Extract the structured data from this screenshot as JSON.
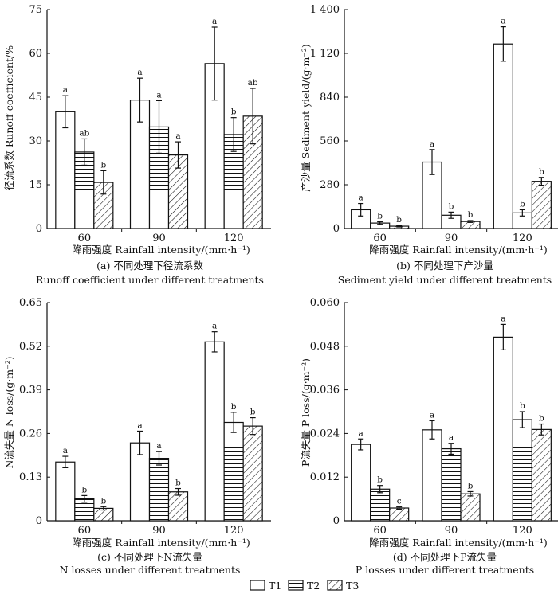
{
  "figure": {
    "legend": [
      "T1",
      "T2",
      "T3"
    ],
    "series_patterns": {
      "T1": "blank",
      "T2": "horizontal-lines",
      "T3": "diagonal-lines"
    },
    "colors": {
      "line": "#111111",
      "fill": "#ffffff"
    }
  },
  "chart_data": [
    {
      "type": "bar",
      "id": "a",
      "categories": [
        "60",
        "90",
        "120"
      ],
      "series": [
        {
          "name": "T1",
          "values": [
            40,
            44,
            56.5
          ],
          "errors": [
            5.5,
            7.5,
            12.5
          ],
          "letters": [
            "a",
            "a",
            "a"
          ]
        },
        {
          "name": "T2",
          "values": [
            26.2,
            34.8,
            32.2
          ],
          "errors": [
            4.5,
            9,
            5.8
          ],
          "letters": [
            "ab",
            "a",
            "b"
          ]
        },
        {
          "name": "T3",
          "values": [
            15.8,
            25.2,
            38.5
          ],
          "errors": [
            4,
            4.5,
            9.5
          ],
          "letters": [
            "b",
            "a",
            "ab"
          ]
        }
      ],
      "ylim": [
        0,
        75
      ],
      "yticks": [
        "0",
        "15",
        "30",
        "45",
        "60",
        "75"
      ],
      "ylabel": "径流系数 Runoff coefficient/%",
      "xlabel": "降雨强度 Rainfall intensity/(mm·h⁻¹)",
      "caption_cn": "(a) 不同处理下径流系数",
      "caption_en": "Runoff coefficient under different treatments"
    },
    {
      "type": "bar",
      "id": "b",
      "categories": [
        "60",
        "90",
        "120"
      ],
      "series": [
        {
          "name": "T1",
          "values": [
            120,
            425,
            1180
          ],
          "errors": [
            40,
            80,
            110
          ],
          "letters": [
            "a",
            "a",
            "a"
          ]
        },
        {
          "name": "T2",
          "values": [
            35,
            85,
            100
          ],
          "errors": [
            8,
            20,
            20
          ],
          "letters": [
            "b",
            "b",
            "b"
          ]
        },
        {
          "name": "T3",
          "values": [
            15,
            45,
            302
          ],
          "errors": [
            5,
            6,
            25
          ],
          "letters": [
            "b",
            "b",
            "b"
          ]
        }
      ],
      "ylim": [
        0,
        1400
      ],
      "yticks": [
        "0",
        "280",
        "560",
        "840",
        "1 120",
        "1 400"
      ],
      "ylabel": "产沙量 Sediment yield/(g·m⁻²)",
      "xlabel": "降雨强度 Rainfall intensity/(mm·h⁻¹)",
      "caption_cn": "(b) 不同处理下产沙量",
      "caption_en": "Sediment yield under different treatments"
    },
    {
      "type": "bar",
      "id": "c",
      "categories": [
        "60",
        "90",
        "120"
      ],
      "series": [
        {
          "name": "T1",
          "values": [
            0.175,
            0.232,
            0.533
          ],
          "errors": [
            0.017,
            0.035,
            0.03
          ],
          "letters": [
            "a",
            "a",
            "a"
          ]
        },
        {
          "name": "T2",
          "values": [
            0.065,
            0.186,
            0.293
          ],
          "errors": [
            0.01,
            0.02,
            0.03
          ],
          "letters": [
            "b",
            "a",
            "b"
          ]
        },
        {
          "name": "T3",
          "values": [
            0.037,
            0.086,
            0.282
          ],
          "errors": [
            0.005,
            0.01,
            0.025
          ],
          "letters": [
            "b",
            "b",
            "b"
          ]
        }
      ],
      "ylim": [
        0,
        0.65
      ],
      "yticks": [
        "0",
        "0.13",
        "0.26",
        "0.39",
        "0.52",
        "0.65"
      ],
      "ylabel": "N流失量 N loss/(g·m⁻²)",
      "xlabel": "降雨强度 Rainfall intensity/(mm·h⁻¹)",
      "caption_cn": "(c) 不同处理下N流失量",
      "caption_en": "N losses under different treatments"
    },
    {
      "type": "bar",
      "id": "d",
      "categories": [
        "60",
        "90",
        "120"
      ],
      "series": [
        {
          "name": "T1",
          "values": [
            0.021,
            0.025,
            0.0505
          ],
          "errors": [
            0.0015,
            0.0025,
            0.0035
          ],
          "letters": [
            "a",
            "a",
            "a"
          ]
        },
        {
          "name": "T2",
          "values": [
            0.0087,
            0.0198,
            0.0278
          ],
          "errors": [
            0.001,
            0.0015,
            0.0022
          ],
          "letters": [
            "b",
            "a",
            "b"
          ]
        },
        {
          "name": "T3",
          "values": [
            0.0035,
            0.0074,
            0.0251
          ],
          "errors": [
            0.0003,
            0.0006,
            0.0015
          ],
          "letters": [
            "c",
            "b",
            "b"
          ]
        }
      ],
      "ylim": [
        0,
        0.06
      ],
      "yticks": [
        "0",
        "0.012",
        "0.024",
        "0.036",
        "0.048",
        "0.060"
      ],
      "ylabel": "P流失量 P loss/(g·m⁻²)",
      "xlabel": "降雨强度 Rainfall intensity/(mm·h⁻¹)",
      "caption_cn": "(d) 不同处理下P流失量",
      "caption_en": "P losses under different treatments"
    }
  ]
}
